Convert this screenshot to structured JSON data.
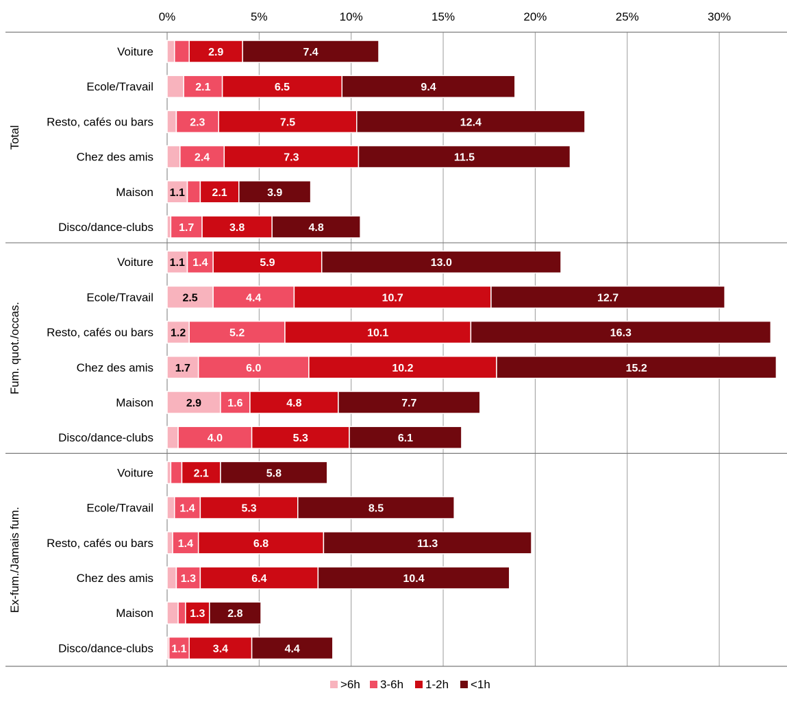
{
  "chart_data": {
    "type": "bar",
    "orientation": "horizontal",
    "stacked": true,
    "xlim": [
      0,
      33
    ],
    "x_ticks": [
      "0%",
      "5%",
      "10%",
      "15%",
      "20%",
      "25%",
      "30%"
    ],
    "x_tick_values": [
      0,
      5,
      10,
      15,
      20,
      25,
      30
    ],
    "grid": true,
    "legend_position": "bottom",
    "series": [
      {
        "name": ">6h",
        "color": "#f8b3bd",
        "label_color": "#000000"
      },
      {
        "name": "3-6h",
        "color": "#f04d63",
        "label_color": "#ffffff"
      },
      {
        "name": "1-2h",
        "color": "#cc0a14",
        "label_color": "#ffffff"
      },
      {
        "name": "<1h",
        "color": "#70080e",
        "label_color": "#ffffff"
      }
    ],
    "groups": [
      {
        "name": "Total",
        "rows": [
          {
            "category": "Voiture",
            "values": [
              0.4,
              0.8,
              2.9,
              7.4
            ],
            "labels": [
              "",
              "",
              "2.9",
              "7.4"
            ]
          },
          {
            "category": "Ecole/Travail",
            "values": [
              0.9,
              2.1,
              6.5,
              9.4
            ],
            "labels": [
              "",
              "2.1",
              "6.5",
              "9.4"
            ]
          },
          {
            "category": "Resto, cafés ou bars",
            "values": [
              0.5,
              2.3,
              7.5,
              12.4
            ],
            "labels": [
              "",
              "2.3",
              "7.5",
              "12.4"
            ]
          },
          {
            "category": "Chez des amis",
            "values": [
              0.7,
              2.4,
              7.3,
              11.5
            ],
            "labels": [
              "",
              "2.4",
              "7.3",
              "11.5"
            ]
          },
          {
            "category": "Maison",
            "values": [
              1.1,
              0.7,
              2.1,
              3.9
            ],
            "labels": [
              "1.1",
              "",
              "2.1",
              "3.9"
            ]
          },
          {
            "category": "Disco/dance-clubs",
            "values": [
              0.2,
              1.7,
              3.8,
              4.8
            ],
            "labels": [
              "",
              "1.7",
              "3.8",
              "4.8"
            ]
          }
        ]
      },
      {
        "name": "Fum. quot./occas.",
        "rows": [
          {
            "category": "Voiture",
            "values": [
              1.1,
              1.4,
              5.9,
              13.0
            ],
            "labels": [
              "1.1",
              "1.4",
              "5.9",
              "13.0"
            ]
          },
          {
            "category": "Ecole/Travail",
            "values": [
              2.5,
              4.4,
              10.7,
              12.7
            ],
            "labels": [
              "2.5",
              "4.4",
              "10.7",
              "12.7"
            ]
          },
          {
            "category": "Resto, cafés ou bars",
            "values": [
              1.2,
              5.2,
              10.1,
              16.3
            ],
            "labels": [
              "1.2",
              "5.2",
              "10.1",
              "16.3"
            ]
          },
          {
            "category": "Chez des amis",
            "values": [
              1.7,
              6.0,
              10.2,
              15.2
            ],
            "labels": [
              "1.7",
              "6.0",
              "10.2",
              "15.2"
            ]
          },
          {
            "category": "Maison",
            "values": [
              2.9,
              1.6,
              4.8,
              7.7
            ],
            "labels": [
              "2.9",
              "1.6",
              "4.8",
              "7.7"
            ]
          },
          {
            "category": "Disco/dance-clubs",
            "values": [
              0.6,
              4.0,
              5.3,
              6.1
            ],
            "labels": [
              "",
              "4.0",
              "5.3",
              "6.1"
            ]
          }
        ]
      },
      {
        "name": "Ex-fum./Jamais fum.",
        "rows": [
          {
            "category": "Voiture",
            "values": [
              0.2,
              0.6,
              2.1,
              5.8
            ],
            "labels": [
              "",
              "",
              "2.1",
              "5.8"
            ]
          },
          {
            "category": "Ecole/Travail",
            "values": [
              0.4,
              1.4,
              5.3,
              8.5
            ],
            "labels": [
              "",
              "1.4",
              "5.3",
              "8.5"
            ]
          },
          {
            "category": "Resto, cafés ou bars",
            "values": [
              0.3,
              1.4,
              6.8,
              11.3
            ],
            "labels": [
              "",
              "1.4",
              "6.8",
              "11.3"
            ]
          },
          {
            "category": "Chez des amis",
            "values": [
              0.5,
              1.3,
              6.4,
              10.4
            ],
            "labels": [
              "",
              "1.3",
              "6.4",
              "10.4"
            ]
          },
          {
            "category": "Maison",
            "values": [
              0.6,
              0.4,
              1.3,
              2.8
            ],
            "labels": [
              "",
              "",
              "1.3",
              "2.8"
            ]
          },
          {
            "category": "Disco/dance-clubs",
            "values": [
              0.1,
              1.1,
              3.4,
              4.4
            ],
            "labels": [
              "",
              "1.1",
              "3.4",
              "4.4"
            ]
          }
        ]
      }
    ]
  }
}
